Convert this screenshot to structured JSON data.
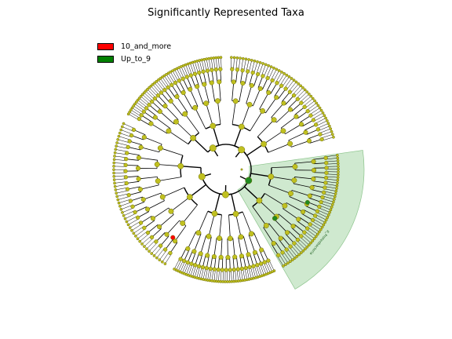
{
  "title": "Significantly Represented Taxa",
  "legend": [
    {
      "label": "10_and_more",
      "color": "#ff0000"
    },
    {
      "label": "Up_to_9",
      "color": "#008000"
    }
  ],
  "clade_label": "p_Proteobacteria",
  "colors": {
    "node_fill": "#c0c020",
    "node_stroke": "#6b6b00",
    "edge": "#000000",
    "highlight_wedge": "#9fd49f",
    "highlight_node": "#1f8a1f",
    "significant_node": "#ff0000"
  }
}
